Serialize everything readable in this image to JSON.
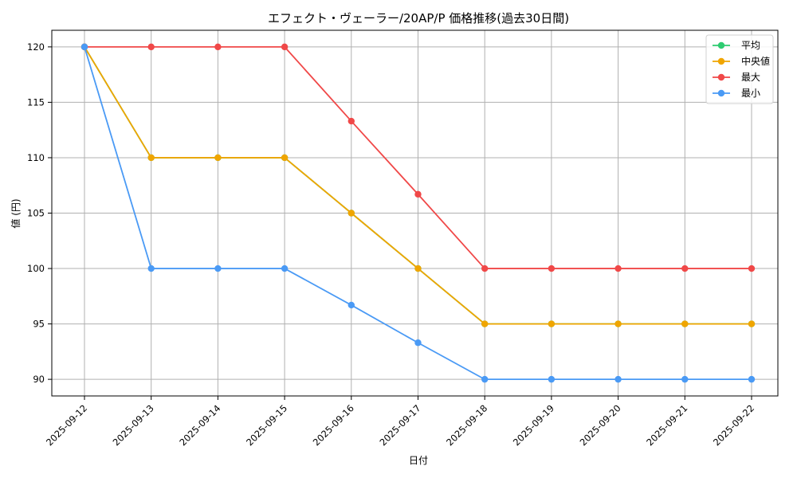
{
  "chart_data": {
    "type": "line",
    "title": "エフェクト・ヴェーラー/20AP/P 価格推移(過去30日間)",
    "xlabel": "日付",
    "ylabel": "値 (円)",
    "categories": [
      "2025-09-12",
      "2025-09-13",
      "2025-09-14",
      "2025-09-15",
      "2025-09-16",
      "2025-09-17",
      "2025-09-18",
      "2025-09-19",
      "2025-09-20",
      "2025-09-21",
      "2025-09-22"
    ],
    "ylim": [
      88.5,
      121.5
    ],
    "yticks": [
      90,
      95,
      100,
      105,
      110,
      115,
      120
    ],
    "grid": true,
    "legend_position": "top-right",
    "series": [
      {
        "name": "平均",
        "color": "#2ecc71",
        "values": [
          120,
          110,
          110,
          110,
          105,
          100,
          95,
          95,
          95,
          95,
          95
        ]
      },
      {
        "name": "中央値",
        "color": "#f0a500",
        "values": [
          120,
          110,
          110,
          110,
          105,
          100,
          95,
          95,
          95,
          95,
          95
        ]
      },
      {
        "name": "最大",
        "color": "#f04848",
        "values": [
          120,
          120,
          120,
          120,
          113.3,
          106.7,
          100,
          100,
          100,
          100,
          100
        ]
      },
      {
        "name": "最小",
        "color": "#4a9af5",
        "values": [
          120,
          100,
          100,
          100,
          96.7,
          93.3,
          90,
          90,
          90,
          90,
          90
        ]
      }
    ]
  }
}
